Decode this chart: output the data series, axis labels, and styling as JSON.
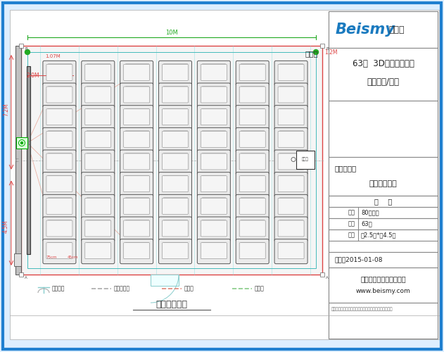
{
  "bg_color": "#ddeeff",
  "outer_border_color": "#2080d0",
  "title_main": "63位  3D数字智能影院\n建设设计/安装",
  "drawing_title": "图纸名称：",
  "drawing_subtitle": "平面、布线图",
  "params_title": "参    数",
  "param_rows": [
    [
      "面积",
      "80平方米"
    ],
    [
      "座位",
      "63位"
    ],
    [
      "座橌",
      "宽2.5米*长4.5米"
    ]
  ],
  "date_text": "日期：2015-01-08",
  "company_text": "北京贝视曼科技有限公司",
  "website_text": "www.beismy.com",
  "note_text": "注：图纸仅供参考，具体尺寸以实际安装场地尺寸为准！",
  "room_label": "放映庁",
  "bottom_title": "平面、布线图",
  "dim_10m": "10M",
  "dim_12m": "1.2M",
  "dim_107m": "1.07M",
  "dim_20m": "2.0M",
  "dim_72m": "7.2M",
  "dim_45m": "4.5M",
  "legend_items": [
    "电源插座",
    "电源连接线",
    "音频线",
    "音响线"
  ],
  "legend_colors": [
    "#555555",
    "#aaaaaa",
    "#e08878",
    "#88cc88"
  ],
  "seat_color": "#eeeeee",
  "seat_border": "#666666",
  "room_line_color": "#dd4444",
  "room_inner_color": "#44bbbb",
  "dimension_color": "#dd4444",
  "green_dim_color": "#22aa22",
  "pink_line_color": "#e8a090",
  "beismy_blue": "#1a7abf",
  "beismy_red": "#cc2222",
  "panel_border": "#888888"
}
